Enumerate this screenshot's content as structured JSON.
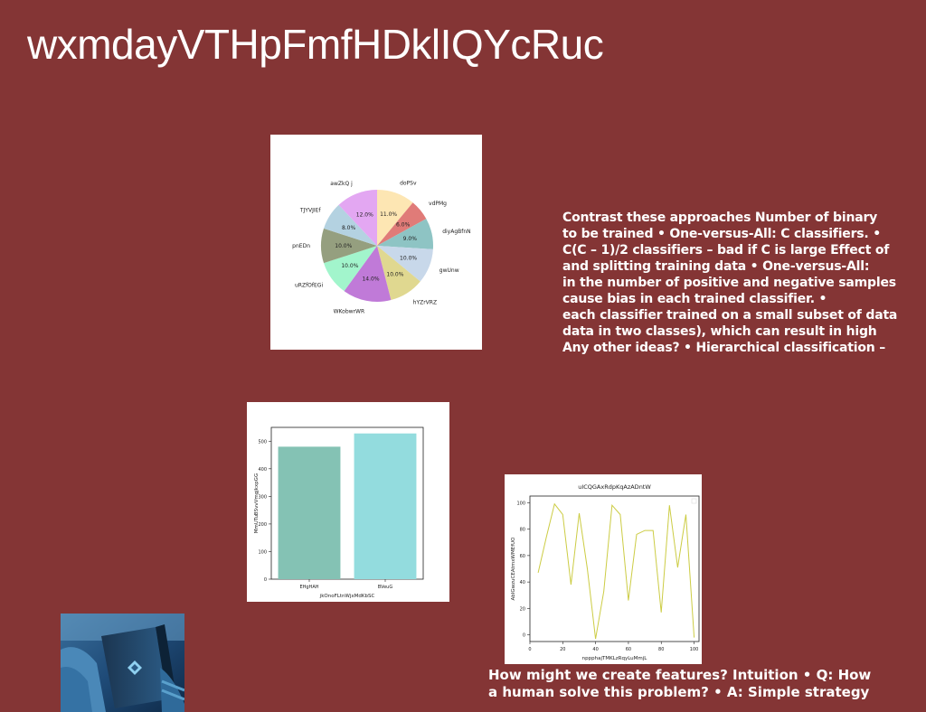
{
  "title": "wxmdayVTHpFmfHDklIQYcRuc",
  "text_lines": [
    "Contrast these approaches Number of binary",
    "to be trained • One-versus-All: C classifiers. •",
    "C(C – 1)/2 classifiers – bad if C is large Effect of",
    "and splitting training data • One-versus-All:",
    "in the number of positive and negative samples",
    "cause bias in each trained classifier. •",
    "each classifier trained on a small subset of data",
    "data in two classes), which can result in high",
    "Any other ideas? • Hierarchical classification –"
  ],
  "bottom_lines": [
    "How might we create features? Intuition • Q: How",
    "a human solve this problem? • A: Simple strategy"
  ],
  "chart_data": [
    {
      "type": "pie",
      "slices": [
        {
          "label": "doPSv",
          "value": 11.0,
          "pct": "11.0%",
          "color": "#fde6b3"
        },
        {
          "label": "vdPMg",
          "value": 6.0,
          "pct": "6.0%",
          "color": "#e07b78"
        },
        {
          "label": "diyAgBfnN",
          "value": 9.0,
          "pct": "9.0%",
          "color": "#8ec4c4"
        },
        {
          "label": "gwUnw",
          "value": 10.0,
          "pct": "10.0%",
          "color": "#c8d8ea"
        },
        {
          "label": "hYZrVRZ",
          "value": 10.0,
          "pct": "10.0%",
          "color": "#e0d890"
        },
        {
          "label": "WKobwrWR",
          "value": 14.0,
          "pct": "14.0%",
          "color": "#c07ad8"
        },
        {
          "label": "uRZfOfEGi",
          "value": 10.0,
          "pct": "10.0%",
          "color": "#a2f5cc"
        },
        {
          "label": "pnEDn",
          "value": 10.0,
          "pct": "10.0%",
          "color": "#959f7f"
        },
        {
          "label": "TJYVJIEf",
          "value": 8.0,
          "pct": "8.0%",
          "color": "#b4d2e1"
        },
        {
          "label": "awZkQ j",
          "value": 12.0,
          "pct": "12.0%",
          "color": "#e3a7f2"
        }
      ]
    },
    {
      "type": "bar",
      "categories": [
        "EHgHAH",
        "BVeuG"
      ],
      "values": [
        480,
        528
      ],
      "colors": [
        "#84c2b4",
        "#93dcde"
      ],
      "xlabel": "jkOnoFLtnWjxMdKbSC",
      "ylabel": "MmUTuBSvvVmgjkxpGG",
      "ylim": [
        0,
        550
      ],
      "yticks": [
        0,
        100,
        200,
        300,
        400,
        500
      ]
    },
    {
      "type": "line",
      "title": "uICQGAxRdpKqAzADntW",
      "xlabel": "nppphajTMKLzRqyLuMmjL",
      "ylabel": "AbIGwzuCEAtrnxWMEfUO",
      "color": "#cccc44",
      "xlim": [
        0,
        103
      ],
      "ylim": [
        -5,
        105
      ],
      "xticks": [
        0,
        20,
        40,
        60,
        80,
        100
      ],
      "yticks": [
        0,
        20,
        40,
        60,
        80,
        100
      ],
      "x": [
        5,
        10,
        15,
        20,
        25,
        30,
        35,
        40,
        45,
        50,
        55,
        60,
        65,
        70,
        75,
        80,
        85,
        90,
        95,
        100
      ],
      "y": [
        47,
        74,
        99,
        91,
        38,
        92,
        50,
        -3,
        33,
        98,
        91,
        26,
        76,
        79,
        79,
        17,
        98,
        51,
        91,
        -2
      ]
    }
  ]
}
